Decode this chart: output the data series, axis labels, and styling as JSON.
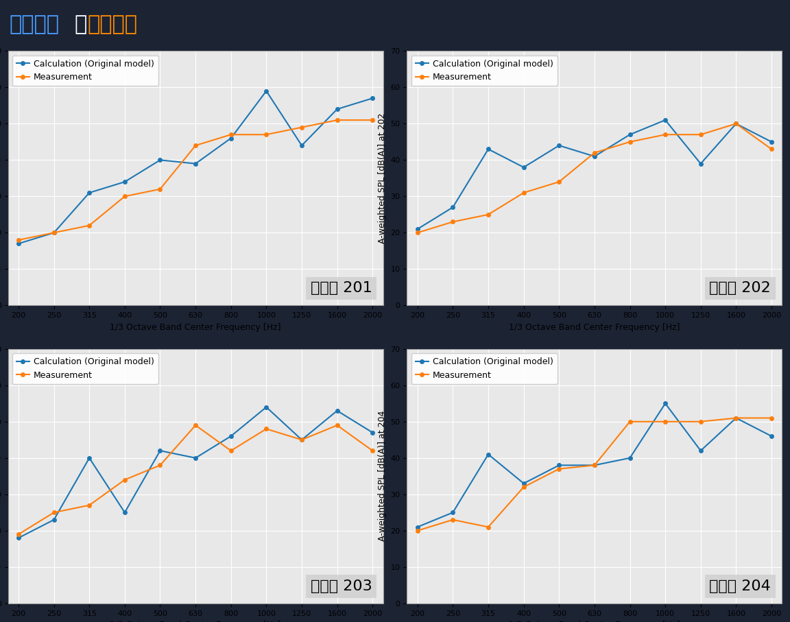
{
  "freqs": [
    200,
    250,
    315,
    400,
    500,
    630,
    800,
    1000,
    1250,
    1600,
    2000
  ],
  "plots": [
    {
      "point": "201",
      "calc": [
        17,
        20,
        31,
        34,
        40,
        39,
        46,
        59,
        44,
        54,
        57
      ],
      "meas": [
        18,
        20,
        22,
        30,
        32,
        44,
        47,
        47,
        49,
        51,
        51
      ]
    },
    {
      "point": "202",
      "calc": [
        21,
        27,
        43,
        38,
        44,
        41,
        47,
        51,
        39,
        50,
        45
      ],
      "meas": [
        20,
        23,
        25,
        31,
        34,
        42,
        45,
        47,
        47,
        50,
        43
      ]
    },
    {
      "point": "203",
      "calc": [
        18,
        23,
        40,
        25,
        42,
        40,
        46,
        54,
        45,
        53,
        47
      ],
      "meas": [
        19,
        25,
        27,
        34,
        38,
        49,
        42,
        48,
        45,
        49,
        42
      ]
    },
    {
      "point": "204",
      "calc": [
        21,
        25,
        41,
        33,
        38,
        38,
        40,
        55,
        42,
        51,
        46
      ],
      "meas": [
        20,
        23,
        21,
        32,
        37,
        38,
        50,
        50,
        50,
        51,
        51
      ]
    }
  ],
  "calc_color": "#1f77b4",
  "meas_color": "#ff7f0e",
  "title_blue": "解析結果",
  "title_connector": "と",
  "title_orange": "測定結果",
  "xlabel": "1/3 Octave Band Center Frequency [Hz]",
  "ylabel_prefix": "A-weighted SPL [dB(A)] at ",
  "ylim": [
    0,
    70
  ],
  "yticks": [
    0,
    10,
    20,
    30,
    40,
    50,
    60,
    70
  ],
  "legend_calc": "Calculation (Original model)",
  "legend_meas": "Measurement",
  "header_bg": "#1a1a2e",
  "outer_bg": "#1c2333",
  "plot_bg_color": "#e8e8e8",
  "grid_color": "white",
  "label_fontsize": 9,
  "tick_fontsize": 8,
  "legend_fontsize": 9,
  "annotation_fontsize": 16,
  "title_fontsize": 22
}
